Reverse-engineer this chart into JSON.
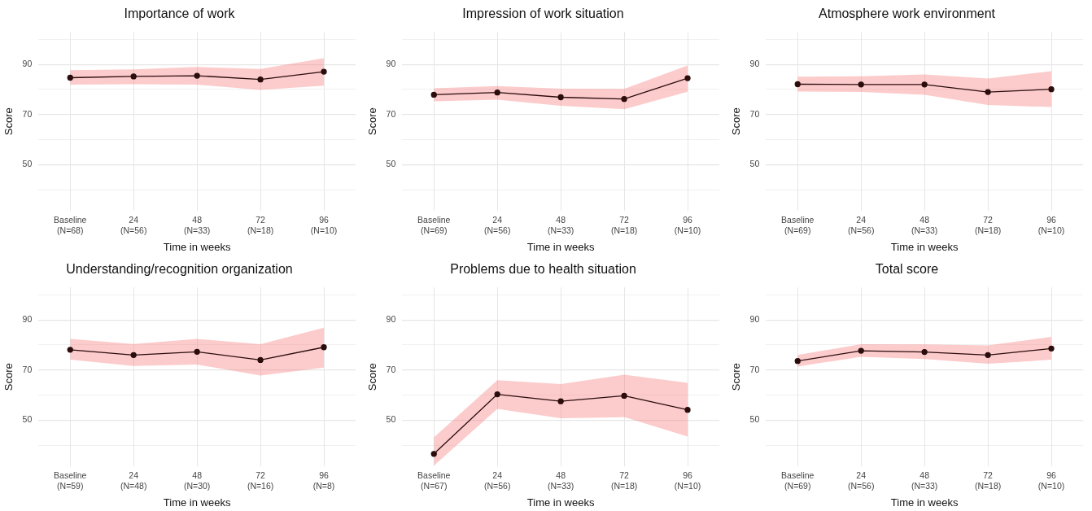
{
  "chart_data": [
    {
      "type": "line",
      "title": "Importance of work",
      "xlabel": "Time in weeks",
      "ylabel": "Score",
      "categories": [
        "Baseline\n(N=68)",
        "24\n(N=56)",
        "48\n(N=33)",
        "72\n(N=18)",
        "96\n(N=10)"
      ],
      "series": [
        {
          "color": "#2b0d0d",
          "values": [
            84.7,
            85.2,
            85.5,
            84.0,
            87.1
          ],
          "lower": [
            81.9,
            82.1,
            81.9,
            79.8,
            81.5
          ],
          "upper": [
            87.7,
            88.0,
            89.0,
            88.2,
            92.5
          ]
        }
      ],
      "ylim": [
        31.5,
        103
      ],
      "yticks": [
        {
          "value": 40,
          "label": null
        },
        50,
        {
          "value": 60,
          "label": null
        },
        70,
        {
          "value": 80,
          "label": null
        },
        90,
        {
          "value": 100,
          "label": null
        }
      ],
      "grid": true,
      "marker": "circle"
    },
    {
      "type": "line",
      "title": "Impression of work situation",
      "xlabel": "Time in weeks",
      "ylabel": "Score",
      "categories": [
        "Baseline\n(N=69)",
        "24\n(N=56)",
        "48\n(N=33)",
        "72\n(N=18)",
        "96\n(N=10)"
      ],
      "series": [
        {
          "color": "#2b0d0d",
          "values": [
            77.9,
            78.8,
            76.9,
            76.2,
            84.5
          ],
          "lower": [
            75.3,
            75.9,
            73.5,
            72.1,
            79.1
          ],
          "upper": [
            80.5,
            81.4,
            80.3,
            80.2,
            89.6
          ]
        }
      ],
      "ylim": [
        31.5,
        103
      ],
      "yticks": [
        {
          "value": 40,
          "label": null
        },
        50,
        {
          "value": 60,
          "label": null
        },
        70,
        {
          "value": 80,
          "label": null
        },
        90,
        {
          "value": 100,
          "label": null
        }
      ],
      "grid": true,
      "marker": "circle"
    },
    {
      "type": "line",
      "title": "Atmosphere work environment",
      "xlabel": "Time in weeks",
      "ylabel": "Score",
      "categories": [
        "Baseline\n(N=69)",
        "24\n(N=56)",
        "48\n(N=33)",
        "72\n(N=18)",
        "96\n(N=10)"
      ],
      "series": [
        {
          "color": "#2b0d0d",
          "values": [
            82.1,
            82.0,
            82.0,
            79.0,
            80.1
          ],
          "lower": [
            79.2,
            79.0,
            77.9,
            73.8,
            73.0
          ],
          "upper": [
            85.1,
            85.3,
            86.0,
            84.4,
            87.3
          ]
        }
      ],
      "ylim": [
        31.5,
        103
      ],
      "yticks": [
        {
          "value": 40,
          "label": null
        },
        50,
        {
          "value": 60,
          "label": null
        },
        70,
        {
          "value": 80,
          "label": null
        },
        90,
        {
          "value": 100,
          "label": null
        }
      ],
      "grid": true,
      "marker": "circle"
    },
    {
      "type": "line",
      "title": "Understanding/recognition organization",
      "xlabel": "Time in weeks",
      "ylabel": "Score",
      "categories": [
        "Baseline\n(N=59)",
        "24\n(N=48)",
        "48\n(N=30)",
        "72\n(N=16)",
        "96\n(N=8)"
      ],
      "series": [
        {
          "color": "#2b0d0d",
          "values": [
            78.1,
            76.0,
            77.3,
            74.0,
            79.1
          ],
          "lower": [
            74.1,
            71.6,
            72.2,
            67.8,
            71.0
          ],
          "upper": [
            82.4,
            80.4,
            82.4,
            80.3,
            86.9
          ]
        }
      ],
      "ylim": [
        31.5,
        103
      ],
      "yticks": [
        {
          "value": 40,
          "label": null
        },
        50,
        {
          "value": 60,
          "label": null
        },
        70,
        {
          "value": 80,
          "label": null
        },
        90,
        {
          "value": 100,
          "label": null
        }
      ],
      "grid": true,
      "marker": "circle"
    },
    {
      "type": "line",
      "title": "Problems due to health situation",
      "xlabel": "Time in weeks",
      "ylabel": "Score",
      "categories": [
        "Baseline\n(N=67)",
        "24\n(N=56)",
        "48\n(N=33)",
        "72\n(N=18)",
        "96\n(N=10)"
      ],
      "series": [
        {
          "color": "#2b0d0d",
          "values": [
            36.5,
            60.3,
            57.5,
            59.7,
            54.1
          ],
          "lower": [
            31.8,
            54.5,
            50.7,
            51.2,
            43.4
          ],
          "upper": [
            43.1,
            65.9,
            64.4,
            68.1,
            64.9
          ]
        }
      ],
      "ylim": [
        31.5,
        103
      ],
      "yticks": [
        {
          "value": 40,
          "label": null
        },
        50,
        {
          "value": 60,
          "label": null
        },
        70,
        {
          "value": 80,
          "label": null
        },
        90,
        {
          "value": 100,
          "label": null
        }
      ],
      "grid": true,
      "marker": "circle"
    },
    {
      "type": "line",
      "title": "Total score",
      "xlabel": "Time in weeks",
      "ylabel": "Score",
      "categories": [
        "Baseline\n(N=69)",
        "24\n(N=56)",
        "48\n(N=33)",
        "72\n(N=18)",
        "96\n(N=10)"
      ],
      "series": [
        {
          "color": "#2b0d0d",
          "values": [
            73.6,
            77.7,
            77.2,
            76.0,
            78.6
          ],
          "lower": [
            71.4,
            75.3,
            74.4,
            72.5,
            74.1
          ],
          "upper": [
            76.0,
            80.3,
            80.2,
            79.8,
            83.2
          ]
        }
      ],
      "ylim": [
        31.5,
        103
      ],
      "yticks": [
        {
          "value": 40,
          "label": null
        },
        50,
        {
          "value": 60,
          "label": null
        },
        70,
        {
          "value": 80,
          "label": null
        },
        90,
        {
          "value": 100,
          "label": null
        }
      ],
      "grid": true,
      "marker": "circle"
    }
  ]
}
